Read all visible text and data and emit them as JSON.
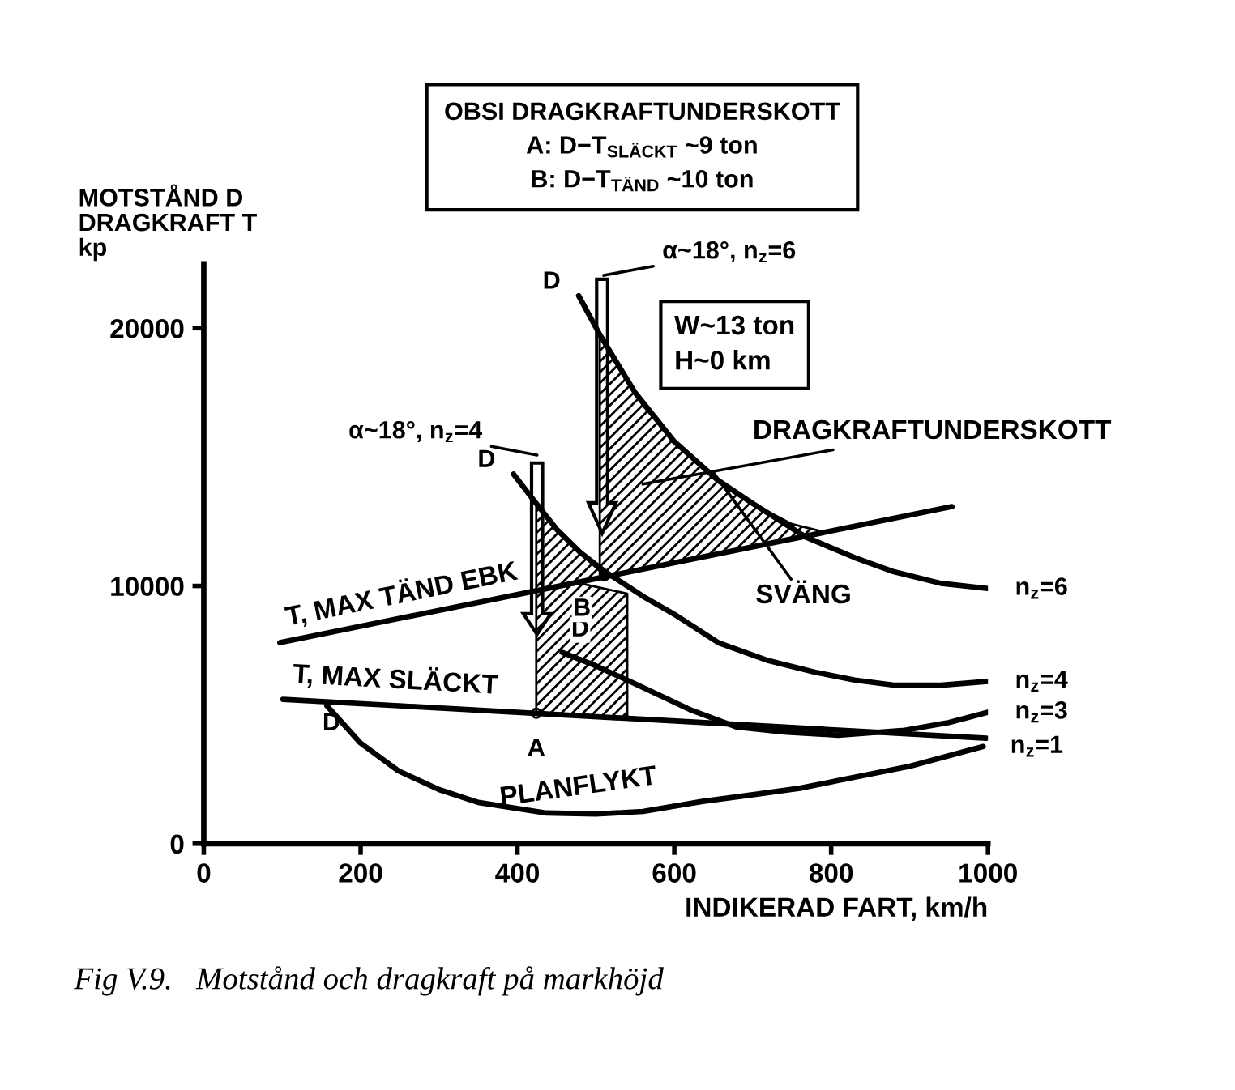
{
  "chart_data": {
    "type": "line",
    "title": "OBSI DRAGKRAFTUNDERSKOTT\nA: D−T$_{SLÄCKT}$ ~9 ton\nB: D−T$_{TÄND}$ ~10 ton",
    "xlabel": "INDIKERAD FART, km/h",
    "ylabel": "MOTSTÅND D\nDRAGKRAFT T\nkp",
    "xlim": [
      0,
      1000
    ],
    "xticks": [
      0,
      200,
      400,
      600,
      800,
      1000
    ],
    "ylim": [
      0,
      22500
    ],
    "yticks": [
      0,
      10000,
      20000
    ],
    "grid": false,
    "legend": false,
    "marker": "none",
    "line_style": "solid",
    "series": [
      {
        "color": "#000000",
        "x": [
          424,
          480,
          540
        ],
        "values": [
          null,
          null,
          null
        ],
        "upper": [
          9800,
          10100,
          9700
        ],
        "lower": [
          5100,
          5000,
          4900
        ]
      },
      {
        "color": "#000000",
        "x": [
          424,
          450,
          480,
          511
        ],
        "values": [
          null,
          null,
          null,
          null
        ],
        "upper": [
          13200,
          12200,
          11300,
          10400
        ],
        "lower": [
          9800,
          10000,
          10200,
          10400
        ]
      },
      {
        "color": "#000000",
        "x": [
          505,
          530,
          560,
          600,
          650,
          700,
          750,
          790
        ],
        "values": [
          null,
          null,
          null,
          null,
          null,
          null,
          null,
          null
        ],
        "upper": [
          19700,
          18400,
          17000,
          15600,
          14200,
          13200,
          12400,
          12100
        ],
        "lower": [
          10300,
          10500,
          10700,
          10900,
          11200,
          11500,
          11800,
          12100
        ]
      },
      {
        "name": "T, MAX TÄND EBK",
        "color": "#000000",
        "x": [
          97,
          954
        ],
        "values": [
          7800,
          13080
        ]
      },
      {
        "name": "T, MAX SLÄCKT",
        "color": "#000000",
        "x": [
          101,
          998
        ],
        "values": [
          5600,
          4090
        ]
      },
      {
        "name": "n$_{z}$=6",
        "color": "#000000",
        "x": [
          478,
          505,
          550,
          600,
          656,
          700,
          768,
          830,
          878,
          940,
          1000
        ],
        "values": [
          21260,
          19750,
          17500,
          15600,
          14090,
          13200,
          11890,
          11100,
          10570,
          10100,
          9900
        ]
      },
      {
        "name": "n$_{z}$=4",
        "color": "#000000",
        "x": [
          395,
          424,
          450,
          480,
          511,
          560,
          600,
          656,
          720,
          780,
          830,
          878,
          940,
          1000
        ],
        "values": [
          14340,
          13200,
          12200,
          11300,
          10570,
          9600,
          8900,
          7800,
          7100,
          6650,
          6350,
          6160,
          6150,
          6300
        ]
      },
      {
        "name": "n$_{z}$=3",
        "color": "#000000",
        "x": [
          457,
          500,
          553,
          620,
          679,
          740,
          809,
          894,
          950,
          1000
        ],
        "values": [
          7420,
          6900,
          6160,
          5200,
          4530,
          4330,
          4210,
          4400,
          4700,
          5100
        ]
      },
      {
        "name": "n$_{z}$=1",
        "color": "#000000",
        "x": [
          157,
          200,
          248,
          300,
          350,
          437,
          500,
          560,
          636,
          700,
          760,
          809,
          900,
          994
        ],
        "values": [
          5350,
          3900,
          2830,
          2100,
          1600,
          1190,
          1150,
          1250,
          1640,
          1900,
          2150,
          2450,
          3000,
          3770
        ]
      }
    ],
    "annotations": [
      "α~18°, n$_{z}$=4",
      "α~18°, n$_{z}$=6",
      {
        "text": "D",
        "x": 395,
        "y": 14340
      },
      {
        "text": "D",
        "x": 478,
        "y": 21260
      },
      {
        "text": "D",
        "x": 457,
        "y": 7420
      },
      {
        "text": "D",
        "x": 157,
        "y": 5350
      },
      {
        "text": "A",
        "x": 424,
        "y": 5060
      },
      {
        "text": "B",
        "x": 511,
        "y": 10400
      },
      "DRAGKRAFTUNDERSKOTT",
      {
        "text": "SVÄNG",
        "x": 650,
        "y": 14400
      },
      {
        "text": "PLANFLYKT",
        "x": 650,
        "y": 1640
      },
      "W~13 ton\nH~0 km",
      "Fig V.9.   Motstånd och dragkraft på markhöjd"
    ]
  }
}
